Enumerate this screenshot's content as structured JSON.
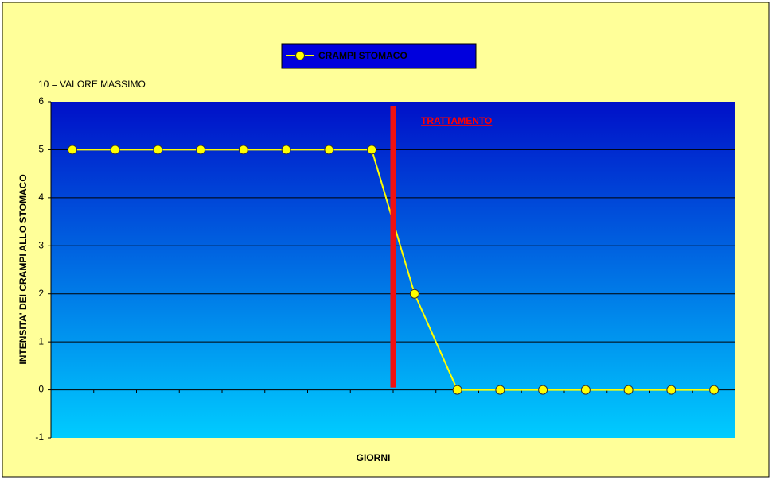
{
  "chart_data": {
    "type": "line",
    "legend_title": null,
    "series": [
      {
        "name": "CRAMPI STOMACO",
        "color": "#ffff00",
        "values": [
          5,
          5,
          5,
          5,
          5,
          5,
          5,
          5,
          2,
          0,
          0,
          0,
          0,
          0,
          0,
          0
        ]
      }
    ],
    "categories": [
      null,
      null,
      null,
      null,
      null,
      null,
      null,
      null,
      null,
      null,
      null,
      null,
      null,
      null,
      null,
      null
    ],
    "note": "10 = VALORE MASSIMO",
    "annotation": "TRATTAMENTO",
    "y_label": "INTENSITA' DEI CRAMPI ALLO STOMACO",
    "x_label": "GIORNI",
    "ylim": [
      -1,
      6
    ],
    "yticks": [
      -1,
      0,
      1,
      2,
      3,
      4,
      5,
      6
    ],
    "grid": true
  }
}
